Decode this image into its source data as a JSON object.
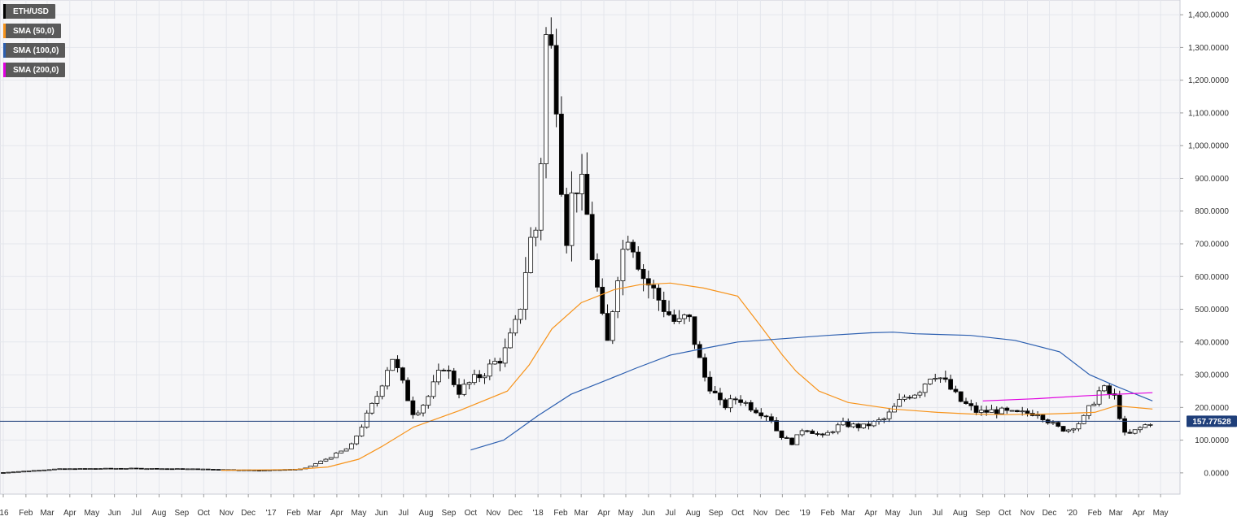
{
  "chart_data": {
    "type": "candlestick",
    "symbol": "ETH/USD",
    "ylim": [
      -50,
      1450
    ],
    "y_ticks": [
      {
        "value": 0,
        "label": "0.0000"
      },
      {
        "value": 100,
        "label": "100.0000"
      },
      {
        "value": 200,
        "label": "200.0000"
      },
      {
        "value": 300,
        "label": "300.0000"
      },
      {
        "value": 400,
        "label": "400.0000"
      },
      {
        "value": 500,
        "label": "500.0000"
      },
      {
        "value": 600,
        "label": "600.0000"
      },
      {
        "value": 700,
        "label": "700.0000"
      },
      {
        "value": 800,
        "label": "800.0000"
      },
      {
        "value": 900,
        "label": "900.0000"
      },
      {
        "value": 1000,
        "label": "1,000.0000"
      },
      {
        "value": 1100,
        "label": "1,100.0000"
      },
      {
        "value": 1200,
        "label": "1,200.0000"
      },
      {
        "value": 1300,
        "label": "1,300.0000"
      },
      {
        "value": 1400,
        "label": "1,400.0000"
      }
    ],
    "x_ticks": [
      {
        "date": "2016-01-01",
        "label": "'16"
      },
      {
        "date": "2016-02-01",
        "label": "Feb"
      },
      {
        "date": "2016-03-01",
        "label": "Mar"
      },
      {
        "date": "2016-04-01",
        "label": "Apr"
      },
      {
        "date": "2016-05-01",
        "label": "May"
      },
      {
        "date": "2016-06-01",
        "label": "Jun"
      },
      {
        "date": "2016-07-01",
        "label": "Jul"
      },
      {
        "date": "2016-08-01",
        "label": "Aug"
      },
      {
        "date": "2016-09-01",
        "label": "Sep"
      },
      {
        "date": "2016-10-01",
        "label": "Oct"
      },
      {
        "date": "2016-11-01",
        "label": "Nov"
      },
      {
        "date": "2016-12-01",
        "label": "Dec"
      },
      {
        "date": "2017-01-01",
        "label": "'17"
      },
      {
        "date": "2017-02-01",
        "label": "Feb"
      },
      {
        "date": "2017-03-01",
        "label": "Mar"
      },
      {
        "date": "2017-04-01",
        "label": "Apr"
      },
      {
        "date": "2017-05-01",
        "label": "May"
      },
      {
        "date": "2017-06-01",
        "label": "Jun"
      },
      {
        "date": "2017-07-01",
        "label": "Jul"
      },
      {
        "date": "2017-08-01",
        "label": "Aug"
      },
      {
        "date": "2017-09-01",
        "label": "Sep"
      },
      {
        "date": "2017-10-01",
        "label": "Oct"
      },
      {
        "date": "2017-11-01",
        "label": "Nov"
      },
      {
        "date": "2017-12-01",
        "label": "Dec"
      },
      {
        "date": "2018-01-01",
        "label": "'18"
      },
      {
        "date": "2018-02-01",
        "label": "Feb"
      },
      {
        "date": "2018-03-01",
        "label": "Mar"
      },
      {
        "date": "2018-04-01",
        "label": "Apr"
      },
      {
        "date": "2018-05-01",
        "label": "May"
      },
      {
        "date": "2018-06-01",
        "label": "Jun"
      },
      {
        "date": "2018-07-01",
        "label": "Jul"
      },
      {
        "date": "2018-08-01",
        "label": "Aug"
      },
      {
        "date": "2018-09-01",
        "label": "Sep"
      },
      {
        "date": "2018-10-01",
        "label": "Oct"
      },
      {
        "date": "2018-11-01",
        "label": "Nov"
      },
      {
        "date": "2018-12-01",
        "label": "Dec"
      },
      {
        "date": "2019-01-01",
        "label": "'19"
      },
      {
        "date": "2019-02-01",
        "label": "Feb"
      },
      {
        "date": "2019-03-01",
        "label": "Mar"
      },
      {
        "date": "2019-04-01",
        "label": "Apr"
      },
      {
        "date": "2019-05-01",
        "label": "May"
      },
      {
        "date": "2019-06-01",
        "label": "Jun"
      },
      {
        "date": "2019-07-01",
        "label": "Jul"
      },
      {
        "date": "2019-08-01",
        "label": "Aug"
      },
      {
        "date": "2019-09-01",
        "label": "Sep"
      },
      {
        "date": "2019-10-01",
        "label": "Oct"
      },
      {
        "date": "2019-11-01",
        "label": "Nov"
      },
      {
        "date": "2019-12-01",
        "label": "Dec"
      },
      {
        "date": "2020-01-01",
        "label": "'20"
      },
      {
        "date": "2020-02-01",
        "label": "Feb"
      },
      {
        "date": "2020-03-01",
        "label": "Mar"
      },
      {
        "date": "2020-04-01",
        "label": "Apr"
      },
      {
        "date": "2020-05-01",
        "label": "May"
      }
    ],
    "x_range": [
      "2016-01-01",
      "2020-05-12"
    ],
    "grid": true,
    "legend_position": "top-left",
    "legend": [
      {
        "label": "ETH/USD",
        "color": "#000000"
      },
      {
        "label": "SMA (50,0)",
        "color": "#f7931a"
      },
      {
        "label": "SMA (100,0)",
        "color": "#2c5fb0"
      },
      {
        "label": "SMA (200,0)",
        "color": "#e000e0"
      }
    ],
    "last_price": {
      "value": 157.77528,
      "label": "157.77528"
    },
    "candle_colors": {
      "up": "#ffffff",
      "down": "#000000"
    },
    "price_anchors": [
      [
        "2016-01-01",
        1
      ],
      [
        "2016-03-15",
        12
      ],
      [
        "2016-06-15",
        14
      ],
      [
        "2016-09-15",
        12
      ],
      [
        "2016-12-15",
        8
      ],
      [
        "2017-02-15",
        12
      ],
      [
        "2017-03-20",
        45
      ],
      [
        "2017-04-20",
        80
      ],
      [
        "2017-05-25",
        230
      ],
      [
        "2017-06-15",
        360
      ],
      [
        "2017-07-15",
        180
      ],
      [
        "2017-08-01",
        220
      ],
      [
        "2017-08-25",
        330
      ],
      [
        "2017-09-15",
        250
      ],
      [
        "2017-10-15",
        300
      ],
      [
        "2017-11-15",
        360
      ],
      [
        "2017-12-05",
        470
      ],
      [
        "2017-12-20",
        700
      ],
      [
        "2018-01-01",
        760
      ],
      [
        "2018-01-13",
        1380
      ],
      [
        "2018-01-27",
        1150
      ],
      [
        "2018-02-07",
        700
      ],
      [
        "2018-02-20",
        900
      ],
      [
        "2018-03-05",
        850
      ],
      [
        "2018-03-20",
        600
      ],
      [
        "2018-04-05",
        380
      ],
      [
        "2018-04-20",
        620
      ],
      [
        "2018-05-05",
        750
      ],
      [
        "2018-05-25",
        600
      ],
      [
        "2018-06-15",
        530
      ],
      [
        "2018-07-10",
        450
      ],
      [
        "2018-07-25",
        480
      ],
      [
        "2018-08-15",
        300
      ],
      [
        "2018-09-10",
        200
      ],
      [
        "2018-10-01",
        230
      ],
      [
        "2018-10-20",
        200
      ],
      [
        "2018-11-15",
        170
      ],
      [
        "2018-11-25",
        120
      ],
      [
        "2018-12-15",
        90
      ],
      [
        "2018-12-30",
        140
      ],
      [
        "2019-01-25",
        110
      ],
      [
        "2019-02-20",
        150
      ],
      [
        "2019-03-20",
        140
      ],
      [
        "2019-04-20",
        165
      ],
      [
        "2019-05-15",
        230
      ],
      [
        "2019-06-05",
        250
      ],
      [
        "2019-06-25",
        310
      ],
      [
        "2019-07-10",
        280
      ],
      [
        "2019-08-01",
        220
      ],
      [
        "2019-08-25",
        185
      ],
      [
        "2019-09-20",
        190
      ],
      [
        "2019-10-15",
        180
      ],
      [
        "2019-11-15",
        185
      ],
      [
        "2019-12-10",
        140
      ],
      [
        "2019-12-25",
        130
      ],
      [
        "2020-01-15",
        160
      ],
      [
        "2020-02-10",
        260
      ],
      [
        "2020-02-28",
        230
      ],
      [
        "2020-03-14",
        110
      ],
      [
        "2020-04-01",
        135
      ],
      [
        "2020-04-20",
        158
      ]
    ],
    "series": [
      {
        "name": "SMA (50,0)",
        "color": "#f7931a",
        "points": [
          [
            "2016-10-25",
            8
          ],
          [
            "2017-02-01",
            10
          ],
          [
            "2017-03-20",
            18
          ],
          [
            "2017-05-01",
            42
          ],
          [
            "2017-06-01",
            80
          ],
          [
            "2017-07-15",
            140
          ],
          [
            "2017-09-15",
            190
          ],
          [
            "2017-11-20",
            250
          ],
          [
            "2017-12-20",
            330
          ],
          [
            "2018-01-20",
            440
          ],
          [
            "2018-03-01",
            520
          ],
          [
            "2018-04-15",
            560
          ],
          [
            "2018-05-20",
            575
          ],
          [
            "2018-07-01",
            580
          ],
          [
            "2018-08-15",
            565
          ],
          [
            "2018-10-01",
            540
          ],
          [
            "2018-11-01",
            450
          ],
          [
            "2018-12-01",
            360
          ],
          [
            "2018-12-20",
            310
          ],
          [
            "2019-01-20",
            250
          ],
          [
            "2019-03-01",
            215
          ],
          [
            "2019-05-01",
            195
          ],
          [
            "2019-07-01",
            185
          ],
          [
            "2019-08-15",
            180
          ],
          [
            "2019-10-01",
            178
          ],
          [
            "2019-12-01",
            180
          ],
          [
            "2020-02-01",
            185
          ],
          [
            "2020-03-01",
            205
          ],
          [
            "2020-04-20",
            195
          ]
        ]
      },
      {
        "name": "SMA (100,0)",
        "color": "#2c5fb0",
        "points": [
          [
            "2017-10-01",
            70
          ],
          [
            "2017-11-15",
            100
          ],
          [
            "2018-01-01",
            175
          ],
          [
            "2018-02-15",
            240
          ],
          [
            "2018-04-01",
            280
          ],
          [
            "2018-05-15",
            320
          ],
          [
            "2018-07-01",
            360
          ],
          [
            "2018-08-15",
            380
          ],
          [
            "2018-10-01",
            400
          ],
          [
            "2018-12-01",
            410
          ],
          [
            "2019-02-01",
            420
          ],
          [
            "2019-04-01",
            428
          ],
          [
            "2019-05-01",
            430
          ],
          [
            "2019-06-01",
            425
          ],
          [
            "2019-08-15",
            420
          ],
          [
            "2019-10-15",
            405
          ],
          [
            "2019-12-15",
            370
          ],
          [
            "2020-01-25",
            300
          ],
          [
            "2020-03-01",
            265
          ],
          [
            "2020-04-20",
            220
          ]
        ]
      },
      {
        "name": "SMA (200,0)",
        "color": "#e000e0",
        "points": [
          [
            "2019-09-01",
            220
          ],
          [
            "2019-11-15",
            227
          ],
          [
            "2020-01-15",
            235
          ],
          [
            "2020-03-01",
            240
          ],
          [
            "2020-04-20",
            245
          ]
        ]
      }
    ]
  }
}
